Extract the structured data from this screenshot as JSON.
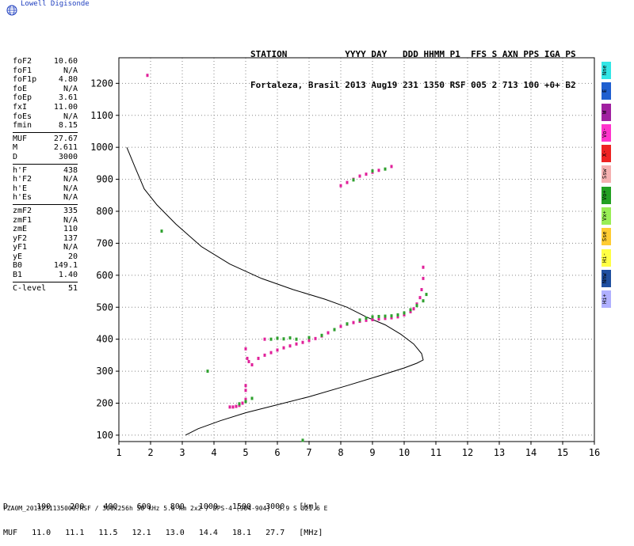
{
  "header": {
    "brand": "Lowell Digisonde",
    "station_line1": "STATION           YYYY DAY   DDD HHMM P1  FFS S AXN PPS IGA PS",
    "station_line2": "Fortaleza, Brasil 2013 Aug19 231 1350 RSF 005 2 713 100 +0+ B2"
  },
  "params": [
    {
      "k": "foF2",
      "v": "10.60"
    },
    {
      "k": "foF1",
      "v": "N/A"
    },
    {
      "k": "foF1p",
      "v": "4.80"
    },
    {
      "k": "foE",
      "v": "N/A"
    },
    {
      "k": "foEp",
      "v": "3.61"
    },
    {
      "k": "fxI",
      "v": "11.00"
    },
    {
      "k": "foEs",
      "v": "N/A"
    },
    {
      "k": "fmin",
      "v": "8.15"
    },
    {
      "sep": true
    },
    {
      "k": "MUF",
      "v": "27.67"
    },
    {
      "k": "M",
      "v": "2.611"
    },
    {
      "k": "D",
      "v": "3000"
    },
    {
      "sep": true
    },
    {
      "k": "h'F",
      "v": "438"
    },
    {
      "k": "h'F2",
      "v": "N/A"
    },
    {
      "k": "h'E",
      "v": "N/A"
    },
    {
      "k": "h'Es",
      "v": "N/A"
    },
    {
      "sep": true
    },
    {
      "k": "zmF2",
      "v": "335"
    },
    {
      "k": "zmF1",
      "v": "N/A"
    },
    {
      "k": "zmE",
      "v": "110"
    },
    {
      "k": "yF2",
      "v": "137"
    },
    {
      "k": "yF1",
      "v": "N/A"
    },
    {
      "k": "yE",
      "v": "20"
    },
    {
      "k": "B0",
      "v": "149.1"
    },
    {
      "k": "B1",
      "v": "1.40"
    },
    {
      "sep": true
    },
    {
      "k": "C-level",
      "v": "51"
    }
  ],
  "legend": [
    {
      "label": "Nne",
      "color": "#33e6e6"
    },
    {
      "label": "E",
      "color": "#1f5fd0"
    },
    {
      "label": "W",
      "color": "#a020a0"
    },
    {
      "label": "Vo-",
      "color": "#ff33cc"
    },
    {
      "label": "X-",
      "color": "#ee2222"
    },
    {
      "label": "Ssw",
      "color": "#f5b0b0"
    },
    {
      "label": "Vo+",
      "color": "#22a022"
    },
    {
      "label": "Vx+",
      "color": "#99ee55"
    },
    {
      "label": "Sse",
      "color": "#ffcc33"
    },
    {
      "label": "Hi-",
      "color": "#ffff44"
    },
    {
      "label": "Nnw",
      "color": "#1f4fa0"
    },
    {
      "label": "Hi+",
      "color": "#b0b0ff"
    }
  ],
  "muf_table": {
    "row1": "D      100    200    400    600    800   1000   1500   3000   [km]",
    "row2": "MUF   11.0   11.1   11.5   12.1   13.0   14.4   18.1   27.7   [MHz]"
  },
  "footer": "FZA0M_2013231135000.RSF / 300x256h 50 kHz 5.0 km 2x2 / DPS-4 (904-904)  3.9 S 321.6 E",
  "chart_data": {
    "type": "scatter",
    "xlim": [
      1,
      16
    ],
    "ylim": [
      80,
      1280
    ],
    "xticks": [
      1,
      2,
      3,
      4,
      5,
      6,
      7,
      8,
      9,
      10,
      11,
      12,
      13,
      14,
      15,
      16
    ],
    "yticks": [
      100,
      200,
      300,
      400,
      500,
      600,
      700,
      800,
      900,
      1000,
      1100,
      1200
    ],
    "grid": true,
    "series": [
      {
        "color": "#e0209a",
        "points": [
          [
            4.5,
            188
          ],
          [
            4.6,
            188
          ],
          [
            4.7,
            190
          ],
          [
            4.8,
            193
          ],
          [
            4.9,
            200
          ],
          [
            5.0,
            212
          ],
          [
            5.0,
            240
          ],
          [
            5.0,
            255
          ],
          [
            5.0,
            370
          ],
          [
            5.05,
            340
          ],
          [
            5.1,
            330
          ],
          [
            5.2,
            320
          ],
          [
            5.4,
            340
          ],
          [
            5.6,
            350
          ],
          [
            5.8,
            358
          ],
          [
            6.0,
            366
          ],
          [
            6.2,
            373
          ],
          [
            6.4,
            379
          ],
          [
            6.6,
            385
          ],
          [
            6.8,
            390
          ],
          [
            7.0,
            396
          ],
          [
            7.2,
            402
          ],
          [
            7.4,
            410
          ],
          [
            7.6,
            420
          ],
          [
            7.8,
            430
          ],
          [
            8.0,
            440
          ],
          [
            8.2,
            447
          ],
          [
            8.4,
            452
          ],
          [
            8.6,
            456
          ],
          [
            8.8,
            459
          ],
          [
            9.0,
            461
          ],
          [
            9.2,
            463
          ],
          [
            9.4,
            465
          ],
          [
            9.6,
            467
          ],
          [
            9.8,
            470
          ],
          [
            10.0,
            476
          ],
          [
            10.2,
            486
          ],
          [
            10.3,
            495
          ],
          [
            10.4,
            510
          ],
          [
            10.5,
            530
          ],
          [
            10.55,
            555
          ],
          [
            10.6,
            590
          ],
          [
            10.6,
            625
          ],
          [
            8.0,
            880
          ],
          [
            8.2,
            890
          ],
          [
            8.4,
            900
          ],
          [
            8.6,
            910
          ],
          [
            8.8,
            916
          ],
          [
            9.0,
            922
          ],
          [
            9.2,
            928
          ],
          [
            9.6,
            940
          ],
          [
            1.9,
            1225
          ],
          [
            5.6,
            400
          ]
        ]
      },
      {
        "color": "#2ea02e",
        "points": [
          [
            4.8,
            198
          ],
          [
            5.0,
            205
          ],
          [
            5.2,
            215
          ],
          [
            5.8,
            400
          ],
          [
            6.0,
            403
          ],
          [
            6.2,
            401
          ],
          [
            6.4,
            404
          ],
          [
            6.6,
            400
          ],
          [
            7.0,
            405
          ],
          [
            7.4,
            412
          ],
          [
            7.8,
            430
          ],
          [
            8.2,
            448
          ],
          [
            8.6,
            460
          ],
          [
            8.8,
            466
          ],
          [
            9.0,
            470
          ],
          [
            9.2,
            471
          ],
          [
            9.4,
            472
          ],
          [
            9.6,
            473
          ],
          [
            9.8,
            476
          ],
          [
            10.0,
            482
          ],
          [
            10.2,
            492
          ],
          [
            10.4,
            505
          ],
          [
            10.6,
            520
          ],
          [
            10.7,
            540
          ],
          [
            8.4,
            898
          ],
          [
            9.0,
            926
          ],
          [
            9.4,
            932
          ],
          [
            2.35,
            738
          ],
          [
            3.8,
            300
          ],
          [
            6.8,
            84
          ]
        ]
      }
    ],
    "profile": [
      [
        1.25,
        1000
      ],
      [
        1.5,
        940
      ],
      [
        1.8,
        870
      ],
      [
        2.2,
        820
      ],
      [
        2.8,
        760
      ],
      [
        3.6,
        690
      ],
      [
        4.5,
        635
      ],
      [
        5.5,
        590
      ],
      [
        6.5,
        555
      ],
      [
        7.5,
        525
      ],
      [
        8.2,
        500
      ],
      [
        8.8,
        470
      ],
      [
        9.4,
        445
      ],
      [
        9.9,
        415
      ],
      [
        10.3,
        385
      ],
      [
        10.55,
        355
      ],
      [
        10.6,
        335
      ],
      [
        10.4,
        325
      ],
      [
        10.0,
        310
      ],
      [
        9.2,
        285
      ],
      [
        8.2,
        255
      ],
      [
        7.0,
        220
      ],
      [
        6.0,
        195
      ],
      [
        5.0,
        170
      ],
      [
        4.2,
        145
      ],
      [
        3.5,
        120
      ],
      [
        3.1,
        100
      ]
    ]
  }
}
